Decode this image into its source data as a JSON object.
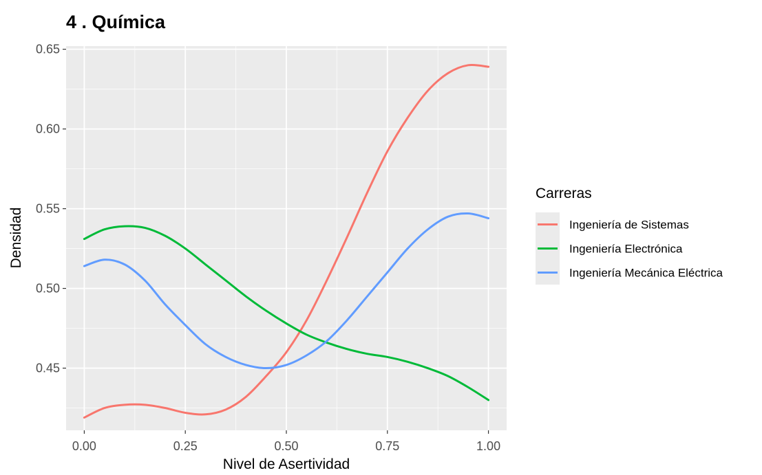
{
  "chart_data": {
    "type": "line",
    "title": "4 . Química",
    "xlabel": "Nivel de Asertividad",
    "ylabel": "Densidad",
    "xlim": [
      -0.045,
      1.045
    ],
    "ylim": [
      0.411,
      0.652
    ],
    "x_ticks": [
      0.0,
      0.25,
      0.5,
      0.75,
      1.0
    ],
    "x_tick_labels": [
      "0.00",
      "0.25",
      "0.50",
      "0.75",
      "1.00"
    ],
    "y_ticks": [
      0.45,
      0.5,
      0.55,
      0.6,
      0.65
    ],
    "y_tick_labels": [
      "0.45",
      "0.50",
      "0.55",
      "0.60",
      "0.65"
    ],
    "grid": true,
    "legend": {
      "title": "Carreras",
      "position": "right"
    },
    "series": [
      {
        "name": "Ingeniería de Sistemas",
        "color": "#F8766D",
        "x": [
          0.0,
          0.05,
          0.1,
          0.15,
          0.2,
          0.25,
          0.3,
          0.35,
          0.4,
          0.45,
          0.5,
          0.55,
          0.6,
          0.65,
          0.7,
          0.75,
          0.8,
          0.85,
          0.9,
          0.95,
          1.0
        ],
        "y": [
          0.419,
          0.425,
          0.427,
          0.427,
          0.425,
          0.422,
          0.421,
          0.424,
          0.432,
          0.445,
          0.46,
          0.48,
          0.505,
          0.532,
          0.56,
          0.586,
          0.607,
          0.624,
          0.635,
          0.64,
          0.639
        ]
      },
      {
        "name": "Ingeniería Electrónica",
        "color": "#00BA38",
        "x": [
          0.0,
          0.05,
          0.1,
          0.15,
          0.2,
          0.25,
          0.3,
          0.35,
          0.4,
          0.45,
          0.5,
          0.55,
          0.6,
          0.65,
          0.7,
          0.75,
          0.8,
          0.85,
          0.9,
          0.95,
          1.0
        ],
        "y": [
          0.531,
          0.537,
          0.539,
          0.538,
          0.533,
          0.525,
          0.515,
          0.505,
          0.495,
          0.486,
          0.478,
          0.471,
          0.466,
          0.462,
          0.459,
          0.457,
          0.454,
          0.45,
          0.445,
          0.438,
          0.43
        ]
      },
      {
        "name": "Ingeniería Mecánica Eléctrica",
        "color": "#619CFF",
        "x": [
          0.0,
          0.05,
          0.1,
          0.15,
          0.2,
          0.25,
          0.3,
          0.35,
          0.4,
          0.45,
          0.5,
          0.55,
          0.6,
          0.65,
          0.7,
          0.75,
          0.8,
          0.85,
          0.9,
          0.95,
          1.0
        ],
        "y": [
          0.514,
          0.518,
          0.515,
          0.505,
          0.49,
          0.477,
          0.465,
          0.457,
          0.452,
          0.45,
          0.452,
          0.458,
          0.467,
          0.48,
          0.495,
          0.51,
          0.525,
          0.537,
          0.545,
          0.547,
          0.544
        ]
      }
    ]
  }
}
